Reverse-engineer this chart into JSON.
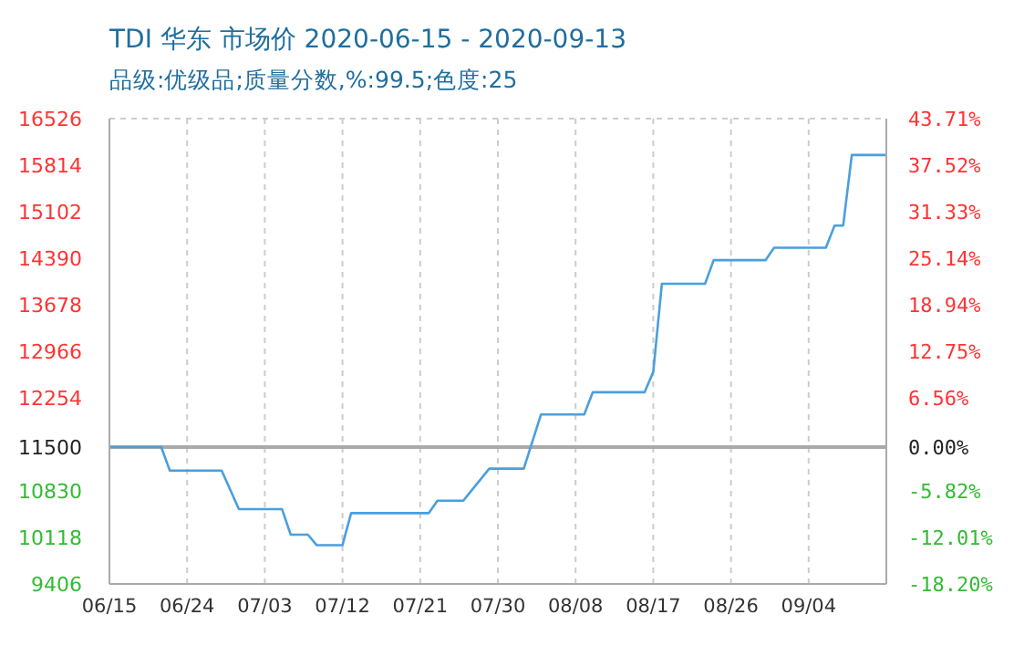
{
  "chart_data": {
    "type": "line",
    "title": "TDI 华东 市场价 2020-06-15 - 2020-09-13",
    "subtitle": "品级:优级品;质量分数,%:99.5;色度:25",
    "x": [
      "2020-06-15",
      "2020-06-21",
      "2020-06-22",
      "2020-06-28",
      "2020-06-30",
      "2020-07-05",
      "2020-07-06",
      "2020-07-08",
      "2020-07-09",
      "2020-07-12",
      "2020-07-13",
      "2020-07-22",
      "2020-07-23",
      "2020-07-26",
      "2020-07-29",
      "2020-08-02",
      "2020-08-04",
      "2020-08-09",
      "2020-08-10",
      "2020-08-16",
      "2020-08-17",
      "2020-08-18",
      "2020-08-23",
      "2020-08-24",
      "2020-08-30",
      "2020-08-31",
      "2020-09-06",
      "2020-09-07",
      "2020-09-08",
      "2020-09-09",
      "2020-09-13"
    ],
    "series": [
      {
        "color": "#4a9fdc",
        "values": [
          11500,
          11500,
          11140,
          11140,
          10550,
          10550,
          10160,
          10160,
          10000,
          10000,
          10490,
          10490,
          10680,
          10680,
          11170,
          11170,
          12000,
          12000,
          12340,
          12340,
          12650,
          14000,
          14000,
          14360,
          14360,
          14550,
          14550,
          14890,
          14890,
          15970,
          15970
        ]
      }
    ],
    "xlim": [
      "2020-06-15",
      "2020-09-13"
    ],
    "xticks": [
      {
        "value": "2020-06-15",
        "label": "06/15"
      },
      {
        "value": "2020-06-24",
        "label": "06/24"
      },
      {
        "value": "2020-07-03",
        "label": "07/03"
      },
      {
        "value": "2020-07-12",
        "label": "07/12"
      },
      {
        "value": "2020-07-21",
        "label": "07/21"
      },
      {
        "value": "2020-07-30",
        "label": "07/30"
      },
      {
        "value": "2020-08-08",
        "label": "08/08"
      },
      {
        "value": "2020-08-17",
        "label": "08/17"
      },
      {
        "value": "2020-08-26",
        "label": "08/26"
      },
      {
        "value": "2020-09-04",
        "label": "09/04"
      }
    ],
    "ylim": [
      9406,
      16526
    ],
    "yticks": [
      9406,
      10118,
      10830,
      11500,
      12254,
      12966,
      13678,
      14390,
      15102,
      15814,
      16526
    ],
    "y2lim": [
      -18.21,
      43.71
    ],
    "y2ticks": [
      {
        "value": -18.2,
        "label": "-18.20%"
      },
      {
        "value": -12.01,
        "label": "-12.01%"
      },
      {
        "value": -5.82,
        "label": "-5.82%"
      },
      {
        "value": 0,
        "label": "0.00%"
      },
      {
        "value": 6.56,
        "label": "6.56%"
      },
      {
        "value": 12.75,
        "label": "12.75%"
      },
      {
        "value": 18.94,
        "label": "18.94%"
      },
      {
        "value": 25.14,
        "label": "25.14%"
      },
      {
        "value": 31.33,
        "label": "31.33%"
      },
      {
        "value": 37.52,
        "label": "37.52%"
      },
      {
        "value": 43.71,
        "label": "43.71%"
      }
    ],
    "ref_lines": [
      {
        "axis": "y",
        "value": 11500,
        "color": "#aaaaaa"
      }
    ],
    "grid": true,
    "line_style": "solid"
  }
}
